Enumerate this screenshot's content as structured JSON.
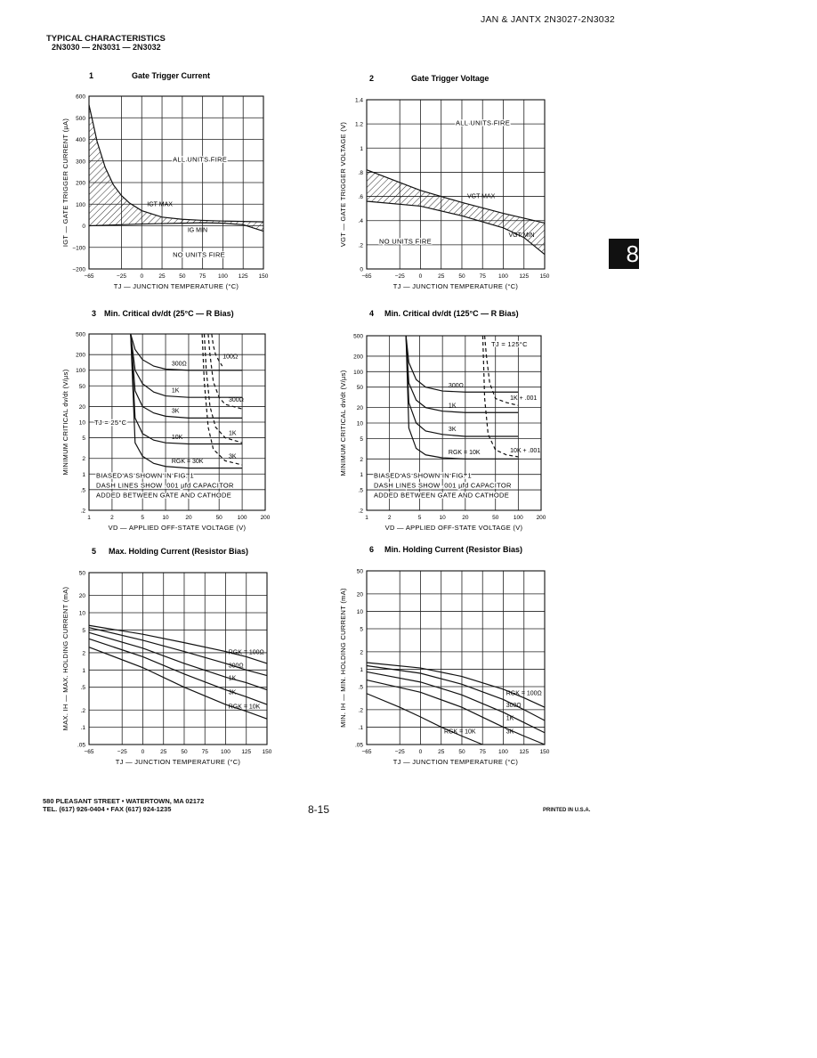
{
  "header": {
    "part_numbers": "JAN & JANTX 2N3027-2N3032",
    "section_title": "TYPICAL CHARACTERISTICS",
    "devices": "2N3030 — 2N3031 — 2N3032"
  },
  "section_tab": "8",
  "footer": {
    "address": "580 PLEASANT STREET • WATERTOWN, MA 02172",
    "phone": "TEL. (617) 926-0404 • FAX (617) 924-1235",
    "page": "8-15",
    "printed": "PRINTED IN U.S.A."
  },
  "chart_data": [
    {
      "number": "1",
      "type": "area",
      "title": "Gate Trigger Current",
      "xlabel": "TJ — JUNCTION TEMPERATURE (°C)",
      "ylabel": "IGT — GATE TRIGGER CURRENT (µA)",
      "x_ticks": [
        "−65",
        "−25",
        "0",
        "25",
        "50",
        "75",
        "100",
        "125",
        "150"
      ],
      "y_ticks": [
        "600",
        "500",
        "400",
        "300",
        "200",
        "100",
        "0",
        "−100",
        "−200"
      ],
      "xlim": [
        -65,
        150
      ],
      "ylim": [
        -200,
        600
      ],
      "annotations": [
        "ALL UNITS FIRE",
        "NO UNITS FIRE"
      ],
      "series": [
        {
          "name": "IGT MAX",
          "x": [
            -65,
            -55,
            -45,
            -35,
            -25,
            -15,
            0,
            25,
            50,
            75,
            100,
            125,
            150
          ],
          "y": [
            560,
            390,
            270,
            190,
            140,
            105,
            70,
            40,
            30,
            25,
            22,
            20,
            18
          ]
        },
        {
          "name": "IG MIN",
          "x": [
            -65,
            -25,
            0,
            25,
            50,
            75,
            100,
            125,
            150
          ],
          "y": [
            0,
            5,
            8,
            10,
            12,
            14,
            12,
            5,
            -25
          ]
        }
      ]
    },
    {
      "number": "2",
      "type": "area",
      "title": "Gate Trigger Voltage",
      "xlabel": "TJ — JUNCTION TEMPERATURE (°C)",
      "ylabel": "VGT — GATE TRIGGER VOLTAGE (V)",
      "x_ticks": [
        "−65",
        "−25",
        "0",
        "25",
        "50",
        "75",
        "100",
        "125",
        "150"
      ],
      "y_ticks": [
        "1.4",
        "1.2",
        "1",
        ".8",
        ".6",
        ".4",
        ".2",
        "0"
      ],
      "xlim": [
        -65,
        150
      ],
      "ylim": [
        0,
        1.4
      ],
      "annotations": [
        "ALL UNITS FIRE",
        "NO UNITS FIRE"
      ],
      "series": [
        {
          "name": "VGT MAX",
          "x": [
            -65,
            0,
            50,
            100,
            150
          ],
          "y": [
            0.82,
            0.65,
            0.55,
            0.46,
            0.38
          ]
        },
        {
          "name": "VGT MIN",
          "x": [
            -65,
            0,
            50,
            100,
            125,
            150
          ],
          "y": [
            0.56,
            0.52,
            0.44,
            0.34,
            0.26,
            0.12
          ]
        }
      ]
    },
    {
      "number": "3",
      "type": "line",
      "title": "Min. Critical dv/dt (25°C — R Bias)",
      "xlabel": "VD — APPLIED OFF-STATE VOLTAGE (V)",
      "ylabel": "MINIMUM CRITICAL dv/dt (V/µs)",
      "x_ticks": [
        "1",
        "2",
        "5",
        "10",
        "20",
        "50",
        "100",
        "200"
      ],
      "y_ticks": [
        "500",
        "200",
        "100",
        "50",
        "20",
        "10",
        "5",
        "2",
        "1",
        ".5",
        ".2"
      ],
      "xlim": [
        1,
        200
      ],
      "ylim": [
        0.2,
        500
      ],
      "log_x": true,
      "log_y": true,
      "annotations": [
        "TJ = 25°C",
        "BIASED AS SHOWN IN FIG. 1",
        "DASH LINES SHOW .001 µfd CAPACITOR",
        "ADDED BETWEEN GATE AND CATHODE"
      ],
      "series": [
        {
          "name": "300Ω",
          "x": [
            3.5,
            4,
            5,
            7,
            10,
            20,
            50,
            100
          ],
          "y": [
            500,
            250,
            160,
            120,
            105,
            100,
            100,
            100
          ]
        },
        {
          "name": "1K",
          "x": [
            3.5,
            4,
            5,
            7,
            10,
            20,
            50,
            100
          ],
          "y": [
            500,
            100,
            55,
            38,
            32,
            30,
            30,
            30
          ]
        },
        {
          "name": "3K",
          "x": [
            3.5,
            4,
            5,
            7,
            10,
            20,
            50,
            100
          ],
          "y": [
            500,
            40,
            20,
            15,
            13,
            12,
            12,
            12
          ]
        },
        {
          "name": "10K",
          "x": [
            3.5,
            4,
            5,
            7,
            10,
            20,
            50,
            100
          ],
          "y": [
            500,
            12,
            6,
            4.5,
            4,
            3.8,
            3.8,
            3.8
          ]
        },
        {
          "name": "RGK = 30K",
          "x": [
            3.5,
            4,
            5,
            7,
            10,
            20,
            50,
            100
          ],
          "y": [
            500,
            4,
            2.2,
            1.6,
            1.4,
            1.3,
            1.3,
            1.3
          ]
        },
        {
          "name": "100Ω",
          "dashed": true,
          "x": [
            40,
            42,
            45,
            50,
            55
          ],
          "y": [
            500,
            300,
            200,
            150,
            120
          ]
        },
        {
          "name": "300Ω",
          "dashed": true,
          "x": [
            36,
            38,
            42,
            50,
            60,
            100
          ],
          "y": [
            500,
            200,
            60,
            30,
            22,
            18
          ]
        },
        {
          "name": "1K",
          "dashed": true,
          "x": [
            32,
            34,
            38,
            45,
            60,
            100
          ],
          "y": [
            500,
            100,
            20,
            8,
            5,
            4
          ]
        },
        {
          "name": "3K",
          "dashed": true,
          "x": [
            30,
            32,
            36,
            42,
            60,
            100
          ],
          "y": [
            500,
            60,
            8,
            3,
            1.8,
            1.5
          ]
        }
      ]
    },
    {
      "number": "4",
      "type": "line",
      "title": "Min. Critical dv/dt (125°C — R Bias)",
      "xlabel": "VD — APPLIED OFF-STATE VOLTAGE (V)",
      "ylabel": "MINIMUM CRITICAL dv/dt (V/µs)",
      "x_ticks": [
        "1",
        "2",
        "5",
        "10",
        "20",
        "50",
        "100",
        "200"
      ],
      "y_ticks": [
        "500",
        "200",
        "100",
        "50",
        "20",
        "10",
        "5",
        "2",
        "1",
        ".5",
        ".2"
      ],
      "xlim": [
        1,
        200
      ],
      "ylim": [
        0.2,
        500
      ],
      "log_x": true,
      "log_y": true,
      "annotations": [
        "TJ = 125°C",
        "BIASED AS SHOWN IN FIG. 1",
        "DASH LINES SHOW .001 µfd CAPACITOR",
        "ADDED BETWEEN GATE AND CATHODE"
      ],
      "series": [
        {
          "name": "300Ω",
          "x": [
            3.3,
            3.6,
            4.5,
            6,
            10,
            20,
            50,
            100
          ],
          "y": [
            500,
            150,
            70,
            50,
            42,
            40,
            40,
            40
          ]
        },
        {
          "name": "1K",
          "x": [
            3.3,
            3.6,
            4.5,
            6,
            10,
            20,
            50,
            100
          ],
          "y": [
            500,
            60,
            28,
            20,
            17,
            16,
            16,
            16
          ]
        },
        {
          "name": "3K",
          "x": [
            3.3,
            3.6,
            4.5,
            6,
            10,
            20,
            50,
            100
          ],
          "y": [
            500,
            25,
            10,
            7,
            6,
            5.5,
            5.5,
            5.5
          ]
        },
        {
          "name": "RGK = 10K",
          "x": [
            3.3,
            3.6,
            4.5,
            6,
            10,
            20,
            50,
            100
          ],
          "y": [
            500,
            8,
            3.2,
            2.4,
            2.1,
            2,
            2,
            2
          ]
        },
        {
          "name": "1K + .001",
          "dashed": true,
          "x": [
            36,
            38,
            42,
            50,
            70,
            100
          ],
          "y": [
            500,
            200,
            60,
            30,
            25,
            22
          ]
        },
        {
          "name": "10K + .001",
          "dashed": true,
          "x": [
            34,
            36,
            40,
            50,
            70,
            100
          ],
          "y": [
            500,
            30,
            6,
            3,
            2.4,
            2.2
          ]
        }
      ]
    },
    {
      "number": "5",
      "type": "line",
      "title": "Max. Holding Current (Resistor Bias)",
      "xlabel": "TJ — JUNCTION TEMPERATURE (°C)",
      "ylabel": "MAX. IH — MAX. HOLDING CURRENT (mA)",
      "x_ticks": [
        "−65",
        "−25",
        "0",
        "25",
        "50",
        "75",
        "100",
        "125",
        "150"
      ],
      "y_ticks": [
        "50",
        "20",
        "10",
        "5",
        "2",
        "1",
        ".5",
        ".2",
        ".1",
        ".05"
      ],
      "xlim": [
        -65,
        150
      ],
      "ylim": [
        0.05,
        50
      ],
      "log_y": true,
      "series": [
        {
          "name": "RGK = 100Ω",
          "x": [
            -65,
            0,
            50,
            100,
            125,
            150
          ],
          "y": [
            6,
            4.2,
            3,
            2.1,
            1.7,
            1.3
          ]
        },
        {
          "name": "300Ω",
          "x": [
            -65,
            0,
            50,
            100,
            125,
            150
          ],
          "y": [
            5.5,
            3.3,
            2.1,
            1.3,
            1,
            0.8
          ]
        },
        {
          "name": "1K",
          "x": [
            -65,
            0,
            50,
            100,
            125,
            150
          ],
          "y": [
            4.5,
            2.4,
            1.3,
            0.75,
            0.6,
            0.45
          ]
        },
        {
          "name": "3K",
          "x": [
            -65,
            0,
            50,
            100,
            125,
            150
          ],
          "y": [
            3.5,
            1.7,
            0.85,
            0.45,
            0.34,
            0.25
          ]
        },
        {
          "name": "RGK = 10K",
          "x": [
            -65,
            0,
            50,
            100,
            125,
            150
          ],
          "y": [
            2.5,
            1.1,
            0.5,
            0.25,
            0.19,
            0.14
          ]
        }
      ]
    },
    {
      "number": "6",
      "type": "line",
      "title": "Min. Holding Current (Resistor Bias)",
      "xlabel": "TJ — JUNCTION TEMPERATURE (°C)",
      "ylabel": "MIN. IH — MIN. HOLDING CURRENT (mA)",
      "x_ticks": [
        "−65",
        "−25",
        "0",
        "25",
        "50",
        "75",
        "100",
        "125",
        "150"
      ],
      "y_ticks": [
        "50",
        "20",
        "10",
        "5",
        "2",
        "1",
        ".5",
        ".2",
        ".1",
        ".05"
      ],
      "xlim": [
        -65,
        150
      ],
      "ylim": [
        0.05,
        50
      ],
      "log_y": true,
      "series": [
        {
          "name": "RGK = 100Ω",
          "x": [
            -65,
            0,
            50,
            100,
            125,
            150
          ],
          "y": [
            1.3,
            1.05,
            0.75,
            0.45,
            0.32,
            0.22
          ]
        },
        {
          "name": "300Ω",
          "x": [
            -65,
            0,
            50,
            100,
            125,
            150
          ],
          "y": [
            1.15,
            0.85,
            0.55,
            0.3,
            0.2,
            0.13
          ]
        },
        {
          "name": "1K",
          "x": [
            -65,
            0,
            50,
            100,
            125,
            150
          ],
          "y": [
            0.9,
            0.6,
            0.36,
            0.18,
            0.12,
            0.08
          ]
        },
        {
          "name": "3K",
          "x": [
            -65,
            0,
            50,
            100,
            125,
            150
          ],
          "y": [
            0.65,
            0.4,
            0.22,
            0.1,
            0.07,
            0.05
          ]
        },
        {
          "name": "RGK = 10K",
          "x": [
            -65,
            -25,
            0,
            25,
            50,
            75
          ],
          "y": [
            0.38,
            0.22,
            0.15,
            0.1,
            0.07,
            0.05
          ]
        }
      ]
    }
  ]
}
